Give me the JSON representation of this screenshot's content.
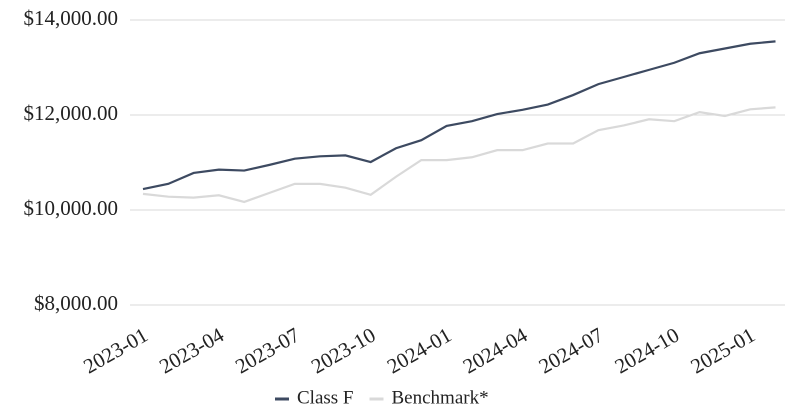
{
  "chart_data": {
    "type": "line",
    "categories": [
      "2023-01",
      null,
      null,
      "2023-04",
      null,
      null,
      "2023-07",
      null,
      null,
      "2023-10",
      null,
      null,
      "2024-01",
      null,
      null,
      "2024-04",
      null,
      null,
      "2024-07",
      null,
      null,
      "2024-10",
      null,
      null,
      "2025-01",
      null
    ],
    "series": [
      {
        "name": "Class F",
        "color": "#3d4a61",
        "values": [
          10440,
          10550,
          10780,
          10850,
          10830,
          10950,
          11080,
          11130,
          11150,
          11010,
          11300,
          11470,
          11770,
          11870,
          12020,
          12110,
          12220,
          12420,
          12650,
          12800,
          12950,
          13100,
          13300,
          13400,
          13500,
          13550
        ]
      },
      {
        "name": "Benchmark*",
        "color": "#d9d9d9",
        "values": [
          10340,
          10280,
          10260,
          10310,
          10170,
          10360,
          10550,
          10550,
          10470,
          10320,
          10700,
          11050,
          11050,
          11110,
          11260,
          11260,
          11400,
          11400,
          11680,
          11780,
          11910,
          11870,
          12060,
          11980,
          12120,
          12160
        ]
      }
    ],
    "ylim": [
      8000,
      14000
    ],
    "yticks": [
      {
        "value": 8000,
        "label": "$8,000.00"
      },
      {
        "value": 10000,
        "label": "$10,000.00"
      },
      {
        "value": 12000,
        "label": "$12,000.00"
      },
      {
        "value": 14000,
        "label": "$14,000.00"
      }
    ],
    "grid": true
  }
}
